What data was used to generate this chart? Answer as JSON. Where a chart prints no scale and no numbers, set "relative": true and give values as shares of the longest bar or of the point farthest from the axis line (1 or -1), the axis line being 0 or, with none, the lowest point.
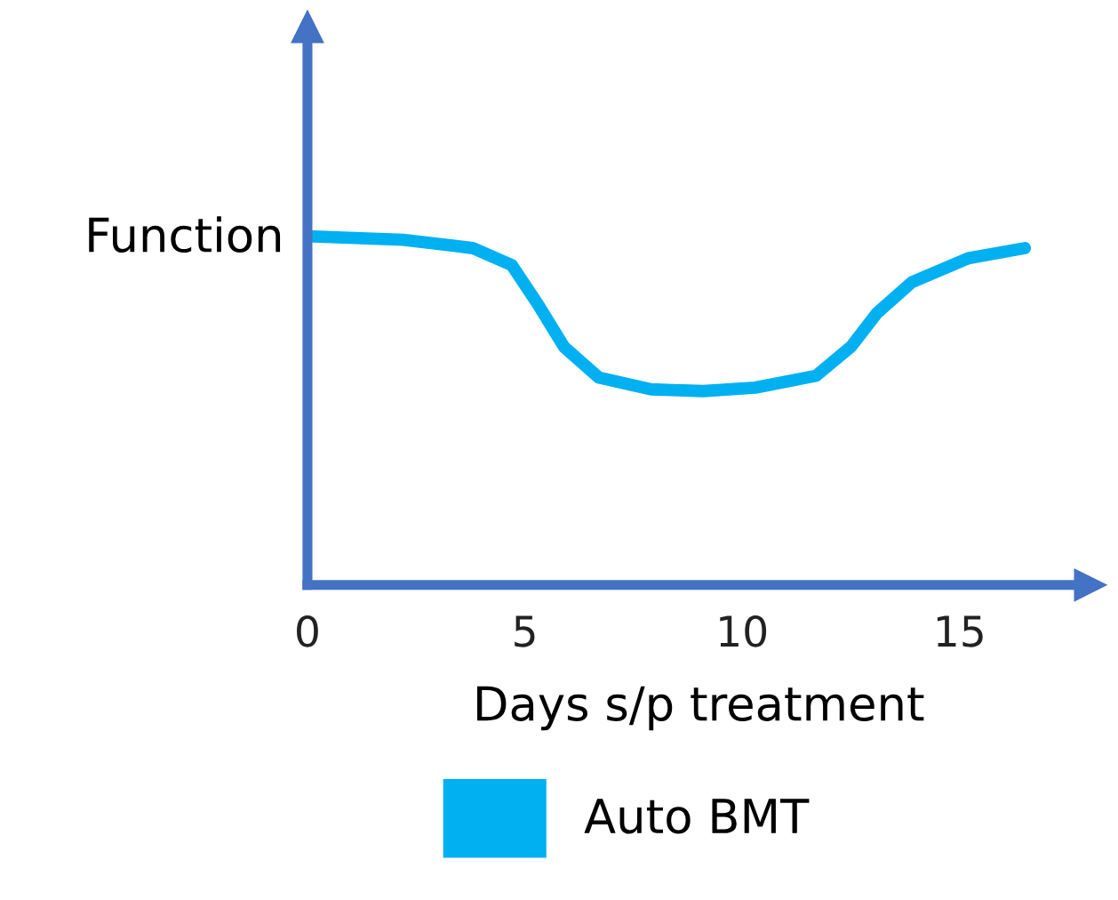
{
  "chart_data": {
    "type": "line",
    "relative": true,
    "xlabel": "Days s/p treatment",
    "ylabel": "Function",
    "x": [
      0,
      2.2,
      3.8,
      4.7,
      5.3,
      5.9,
      6.7,
      7.9,
      9.1,
      10.3,
      11.7,
      12.5,
      13.1,
      13.9,
      15.2,
      16.5
    ],
    "series": [
      {
        "name": "Auto BMT",
        "color": "#00b0f0",
        "values": [
          1.0,
          0.99,
          0.966,
          0.917,
          0.805,
          0.683,
          0.595,
          0.561,
          0.556,
          0.566,
          0.6,
          0.683,
          0.78,
          0.868,
          0.937,
          0.966
        ]
      }
    ],
    "xlim": [
      0,
      18
    ],
    "xticks": [
      0,
      5,
      10,
      15
    ],
    "grid": false,
    "legend": "bottom",
    "marker": "none",
    "line_style": "solid"
  }
}
